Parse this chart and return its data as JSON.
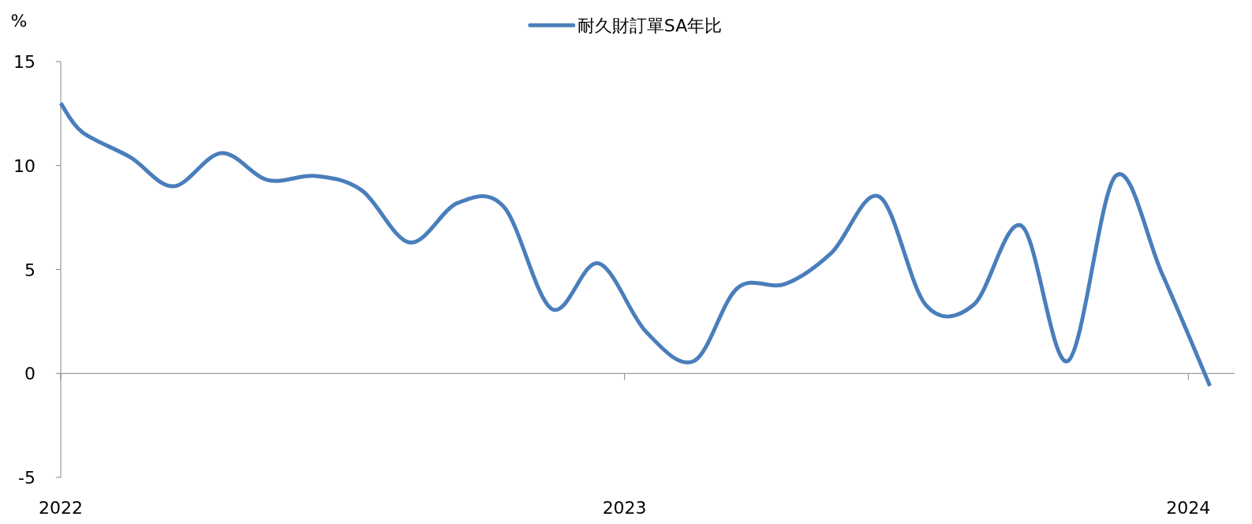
{
  "chart_data": {
    "type": "line",
    "ylabel": "%",
    "legend": "top",
    "x": [
      "2022-01-01",
      "2022-01-15",
      "2022-02-15",
      "2022-03-15",
      "2022-04-15",
      "2022-05-15",
      "2022-06-15",
      "2022-07-15",
      "2022-08-15",
      "2022-09-15",
      "2022-10-15",
      "2022-11-15",
      "2022-12-15",
      "2023-01-15",
      "2023-02-15",
      "2023-03-15",
      "2023-04-15",
      "2023-05-15",
      "2023-06-15",
      "2023-07-15",
      "2023-08-15",
      "2023-09-15",
      "2023-10-15",
      "2023-11-15",
      "2023-12-15",
      "2024-01-15"
    ],
    "series": [
      {
        "name": "耐久財訂單SA年比",
        "color": "#4a7ebb",
        "values": [
          13,
          11.6,
          10.4,
          9.0,
          10.6,
          9.3,
          9.5,
          8.8,
          6.3,
          8.2,
          8.0,
          3.1,
          5.3,
          2.0,
          0.6,
          4.1,
          4.3,
          5.8,
          8.5,
          3.3,
          3.3,
          7.1,
          0.6,
          9.5,
          4.8,
          -0.6
        ]
      }
    ],
    "xlim": [
      "2022-01-01",
      "2024-01-31"
    ],
    "xticks": [
      "2022",
      "2023",
      "2024"
    ],
    "ylim": [
      -5,
      15
    ],
    "yticks": [
      -5,
      0,
      5,
      10,
      15
    ]
  }
}
